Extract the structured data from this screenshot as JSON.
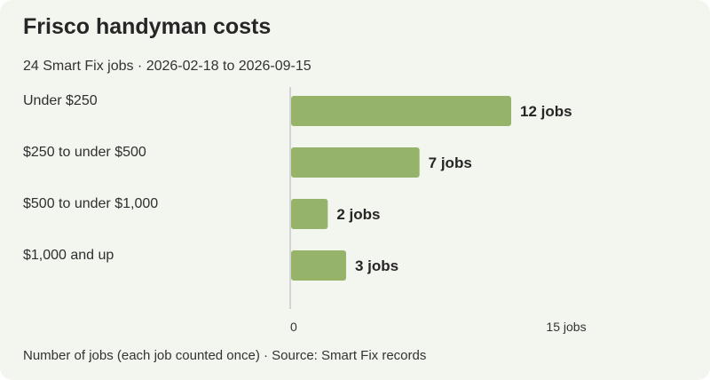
{
  "colors": {
    "background": "#f3f5ef",
    "bar": "#95b46a",
    "axis": "#c8c8c8"
  },
  "chart_data": {
    "type": "bar",
    "orientation": "horizontal",
    "title": "Frisco handyman costs",
    "subtitle": "24 Smart Fix jobs · 2026-02-18 to 2026-09-15",
    "categories": [
      "Under $250",
      "$250 to under $500",
      "$500 to under $1,000",
      "$1,000 and up"
    ],
    "values": [
      12,
      7,
      2,
      3
    ],
    "value_labels": [
      "12 jobs",
      "7 jobs",
      "2 jobs",
      "3 jobs"
    ],
    "xlim": [
      0,
      15
    ],
    "x_ticks": [
      {
        "value": 0,
        "label": "0"
      },
      {
        "value": 15,
        "label": "15 jobs"
      }
    ],
    "grid": false,
    "footer": "Number of jobs (each job counted once) · Source: Smart Fix records"
  }
}
